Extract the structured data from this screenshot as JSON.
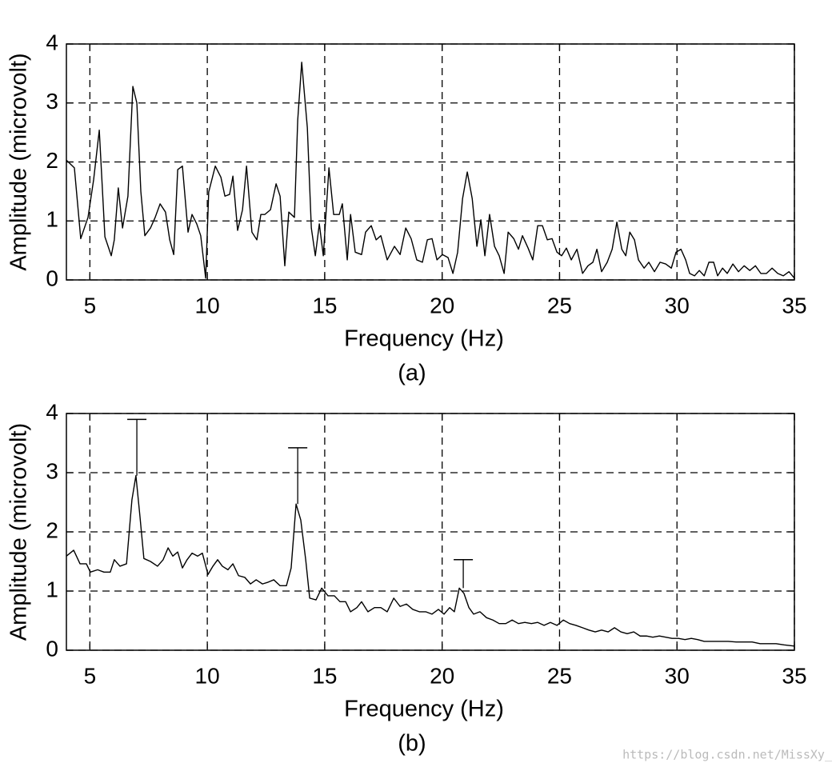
{
  "chart_data": [
    {
      "type": "line",
      "caption": "(a)",
      "xlabel": "Frequency (Hz)",
      "ylabel": "Amplitude (microvolt)",
      "xlim": [
        4,
        35
      ],
      "ylim": [
        0,
        4
      ],
      "xticks": [
        5,
        10,
        15,
        20,
        25,
        30,
        35
      ],
      "yticks": [
        0,
        1,
        2,
        3,
        4
      ],
      "grid": true,
      "color": "#000000",
      "x": [
        4.0,
        4.34,
        4.61,
        4.92,
        5.16,
        5.4,
        5.64,
        5.91,
        6.04,
        6.21,
        6.39,
        6.62,
        6.83,
        7.0,
        7.17,
        7.34,
        7.58,
        7.78,
        7.99,
        8.22,
        8.4,
        8.57,
        8.74,
        8.94,
        9.18,
        9.35,
        9.55,
        9.72,
        9.93,
        10.06,
        10.34,
        10.58,
        10.75,
        10.95,
        11.09,
        11.29,
        11.5,
        11.67,
        11.9,
        12.11,
        12.28,
        12.45,
        12.69,
        12.93,
        13.1,
        13.3,
        13.47,
        13.71,
        13.85,
        14.02,
        14.26,
        14.43,
        14.6,
        14.77,
        14.94,
        15.18,
        15.38,
        15.62,
        15.75,
        15.96,
        16.1,
        16.3,
        16.57,
        16.74,
        16.98,
        17.19,
        17.39,
        17.66,
        17.97,
        18.21,
        18.45,
        18.68,
        18.92,
        19.16,
        19.37,
        19.57,
        19.78,
        20.01,
        20.25,
        20.46,
        20.66,
        20.87,
        21.07,
        21.28,
        21.48,
        21.65,
        21.82,
        22.02,
        22.23,
        22.43,
        22.64,
        22.81,
        23.05,
        23.25,
        23.42,
        23.66,
        23.86,
        24.07,
        24.27,
        24.48,
        24.68,
        24.89,
        25.09,
        25.29,
        25.5,
        25.74,
        25.98,
        26.21,
        26.42,
        26.59,
        26.79,
        27.03,
        27.24,
        27.44,
        27.65,
        27.82,
        27.99,
        28.19,
        28.36,
        28.6,
        28.8,
        29.04,
        29.28,
        29.52,
        29.76,
        29.96,
        30.17,
        30.37,
        30.54,
        30.75,
        30.95,
        31.16,
        31.36,
        31.56,
        31.73,
        31.94,
        32.14,
        32.38,
        32.62,
        32.86,
        33.1,
        33.34,
        33.57,
        33.81,
        34.05,
        34.29,
        34.53,
        34.77,
        35.0
      ],
      "values": [
        2.03,
        1.9,
        0.7,
        1.06,
        1.7,
        2.54,
        0.73,
        0.41,
        0.68,
        1.56,
        0.88,
        1.42,
        3.28,
        3.0,
        1.5,
        0.75,
        0.88,
        1.06,
        1.29,
        1.15,
        0.68,
        0.43,
        1.87,
        1.93,
        0.81,
        1.11,
        0.95,
        0.75,
        0.03,
        1.49,
        1.93,
        1.74,
        1.42,
        1.45,
        1.76,
        0.84,
        1.19,
        1.93,
        0.81,
        0.68,
        1.11,
        1.11,
        1.19,
        1.63,
        1.42,
        0.24,
        1.15,
        1.06,
        2.71,
        3.69,
        2.58,
        0.88,
        0.41,
        0.95,
        0.41,
        1.9,
        1.11,
        1.11,
        1.29,
        0.34,
        1.11,
        0.47,
        0.43,
        0.81,
        0.92,
        0.68,
        0.75,
        0.34,
        0.57,
        0.43,
        0.88,
        0.7,
        0.34,
        0.3,
        0.68,
        0.7,
        0.34,
        0.43,
        0.38,
        0.11,
        0.47,
        1.38,
        1.83,
        1.38,
        0.57,
        1.02,
        0.41,
        1.11,
        0.57,
        0.41,
        0.11,
        0.81,
        0.7,
        0.52,
        0.75,
        0.54,
        0.34,
        0.92,
        0.92,
        0.68,
        0.7,
        0.47,
        0.41,
        0.54,
        0.34,
        0.52,
        0.11,
        0.24,
        0.3,
        0.52,
        0.14,
        0.3,
        0.52,
        0.98,
        0.52,
        0.41,
        0.81,
        0.68,
        0.34,
        0.2,
        0.3,
        0.14,
        0.3,
        0.27,
        0.2,
        0.47,
        0.52,
        0.34,
        0.11,
        0.07,
        0.16,
        0.07,
        0.3,
        0.3,
        0.07,
        0.2,
        0.11,
        0.27,
        0.14,
        0.24,
        0.16,
        0.24,
        0.11,
        0.11,
        0.2,
        0.11,
        0.07,
        0.14,
        0.03
      ]
    },
    {
      "type": "line",
      "caption": "(b)",
      "xlabel": "Frequency (Hz)",
      "ylabel": "Amplitude (microvolt)",
      "xlim": [
        4,
        35
      ],
      "ylim": [
        0,
        4
      ],
      "xticks": [
        5,
        10,
        15,
        20,
        25,
        30,
        35
      ],
      "yticks": [
        0,
        1,
        2,
        3,
        4
      ],
      "grid": true,
      "color": "#000000",
      "x": [
        4.0,
        4.31,
        4.58,
        4.85,
        5.02,
        5.33,
        5.6,
        5.87,
        6.04,
        6.28,
        6.56,
        6.79,
        6.96,
        7.13,
        7.3,
        7.58,
        7.88,
        8.12,
        8.33,
        8.53,
        8.74,
        8.94,
        9.14,
        9.35,
        9.59,
        9.79,
        10.03,
        10.24,
        10.44,
        10.64,
        10.88,
        11.09,
        11.33,
        11.6,
        11.84,
        12.08,
        12.35,
        12.59,
        12.83,
        13.1,
        13.37,
        13.57,
        13.78,
        13.98,
        14.19,
        14.36,
        14.63,
        14.87,
        15.14,
        15.41,
        15.65,
        15.89,
        16.1,
        16.37,
        16.57,
        16.84,
        17.12,
        17.39,
        17.66,
        17.94,
        18.21,
        18.48,
        18.75,
        19.03,
        19.3,
        19.57,
        19.84,
        20.08,
        20.32,
        20.52,
        20.73,
        20.93,
        21.14,
        21.34,
        21.61,
        21.89,
        22.16,
        22.43,
        22.71,
        22.98,
        23.25,
        23.52,
        23.8,
        24.07,
        24.34,
        24.61,
        24.89,
        25.16,
        25.43,
        25.7,
        25.98,
        26.25,
        26.52,
        26.79,
        27.07,
        27.34,
        27.61,
        27.88,
        28.16,
        28.43,
        28.7,
        28.97,
        29.25,
        29.52,
        29.79,
        30.06,
        30.34,
        30.61,
        30.88,
        31.16,
        31.5,
        31.84,
        32.18,
        32.52,
        32.86,
        33.2,
        33.54,
        33.88,
        34.22,
        34.56,
        35.0
      ],
      "values": [
        1.59,
        1.69,
        1.46,
        1.46,
        1.32,
        1.36,
        1.32,
        1.32,
        1.53,
        1.42,
        1.46,
        2.54,
        2.95,
        2.27,
        1.55,
        1.5,
        1.42,
        1.53,
        1.73,
        1.59,
        1.66,
        1.39,
        1.53,
        1.64,
        1.59,
        1.64,
        1.28,
        1.42,
        1.53,
        1.42,
        1.36,
        1.46,
        1.26,
        1.23,
        1.12,
        1.19,
        1.12,
        1.15,
        1.19,
        1.09,
        1.09,
        1.39,
        2.47,
        2.2,
        1.53,
        0.88,
        0.85,
        1.05,
        0.92,
        0.92,
        0.82,
        0.82,
        0.65,
        0.72,
        0.82,
        0.65,
        0.72,
        0.72,
        0.65,
        0.88,
        0.74,
        0.78,
        0.69,
        0.65,
        0.65,
        0.61,
        0.69,
        0.61,
        0.72,
        0.65,
        1.05,
        0.96,
        0.72,
        0.61,
        0.65,
        0.55,
        0.51,
        0.45,
        0.45,
        0.51,
        0.45,
        0.47,
        0.45,
        0.47,
        0.42,
        0.47,
        0.42,
        0.51,
        0.45,
        0.42,
        0.38,
        0.34,
        0.31,
        0.34,
        0.31,
        0.38,
        0.31,
        0.28,
        0.31,
        0.24,
        0.24,
        0.22,
        0.24,
        0.22,
        0.2,
        0.2,
        0.18,
        0.2,
        0.18,
        0.15,
        0.15,
        0.15,
        0.15,
        0.14,
        0.14,
        0.14,
        0.11,
        0.11,
        0.11,
        0.09,
        0.07
      ],
      "error_bars": {
        "x": [
          7.0,
          13.85,
          20.9
        ],
        "lower": [
          2.95,
          2.47,
          1.05
        ],
        "upper": [
          3.9,
          3.42,
          1.53
        ]
      }
    }
  ],
  "watermark": "https://blog.csdn.net/MissXy_"
}
